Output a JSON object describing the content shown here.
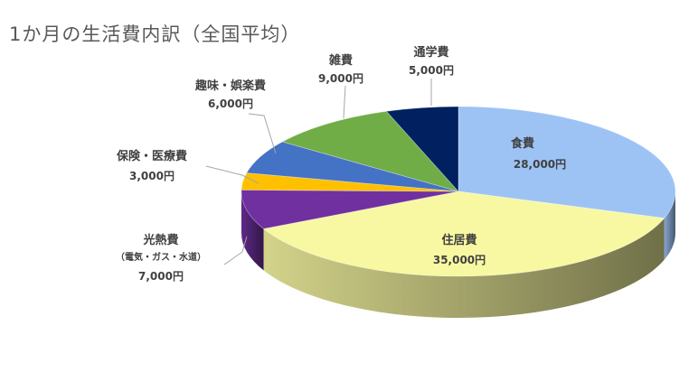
{
  "chart_data": {
    "type": "pie",
    "title": "1か月の生活費内訳（全国平均）",
    "unit": "円",
    "slices": [
      {
        "name": "食費",
        "value": 28000,
        "value_label": "28,000円",
        "color": "#9dc3f5"
      },
      {
        "name": "住居費",
        "value": 35000,
        "value_label": "35,000円",
        "color": "#f8f8a2"
      },
      {
        "name": "光熱費",
        "sub": "（電気・ガス・水道）",
        "value": 7000,
        "value_label": "7,000円",
        "color": "#7030a0"
      },
      {
        "name": "保険・医療費",
        "value": 3000,
        "value_label": "3,000円",
        "color": "#ffc000"
      },
      {
        "name": "趣味・娯楽費",
        "value": 6000,
        "value_label": "6,000円",
        "color": "#4472c4"
      },
      {
        "name": "雑費",
        "value": 9000,
        "value_label": "9,000円",
        "color": "#70ad47"
      },
      {
        "name": "通学費",
        "value": 5000,
        "value_label": "5,000円",
        "color": "#002060"
      }
    ]
  }
}
